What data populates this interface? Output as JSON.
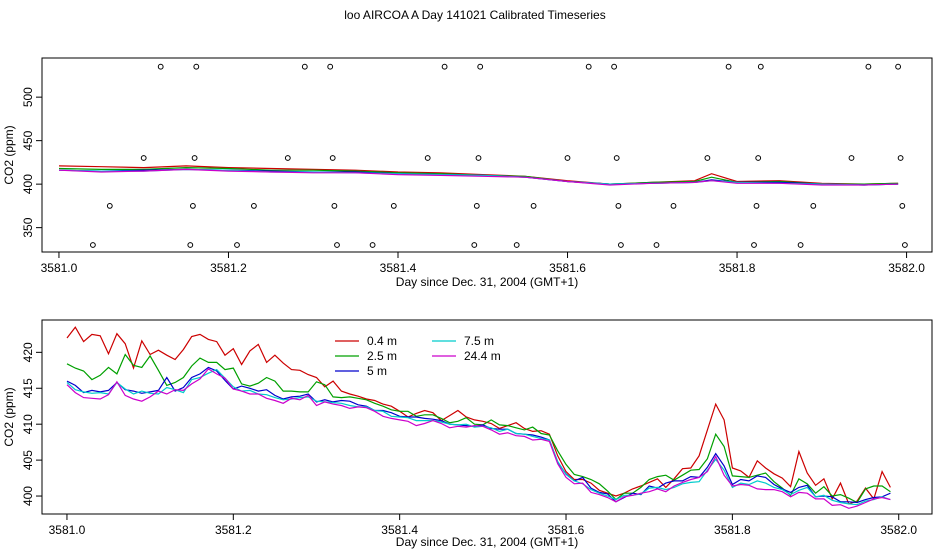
{
  "title": "loo AIRCOA A  Day 141021  Calibrated Timeseries",
  "colors": {
    "0.4 m": "#cc0000",
    "2.5 m": "#00a000",
    "5 m": "#0000cc",
    "7.5 m": "#00cccc",
    "24.4 m": "#cc00cc"
  },
  "chart_data": [
    {
      "type": "line",
      "xlabel": "Day since Dec. 31, 2004 (GMT+1)",
      "ylabel": "CO2 (ppm)",
      "xlim": [
        3580.98,
        3582.03
      ],
      "ylim": [
        322,
        545
      ],
      "x_ticks": [
        "3581.0",
        "3581.2",
        "3581.4",
        "3581.6",
        "3581.8",
        "3582.0"
      ],
      "y_ticks": [
        "350",
        "400",
        "450",
        "500"
      ],
      "series": [
        {
          "name": "0.4 m",
          "x": [
            3581.0,
            3581.05,
            3581.1,
            3581.15,
            3581.2,
            3581.25,
            3581.3,
            3581.35,
            3581.4,
            3581.45,
            3581.5,
            3581.55,
            3581.6,
            3581.65,
            3581.7,
            3581.75,
            3581.77,
            3581.8,
            3581.85,
            3581.9,
            3581.95,
            3581.99
          ],
          "values": [
            421,
            420,
            419,
            421,
            419,
            418,
            417,
            416,
            414,
            413,
            411,
            409,
            404,
            400,
            402,
            404,
            412,
            403,
            404,
            401,
            400,
            401
          ]
        },
        {
          "name": "2.5 m",
          "x": [
            3581.0,
            3581.05,
            3581.1,
            3581.15,
            3581.2,
            3581.25,
            3581.3,
            3581.35,
            3581.4,
            3581.45,
            3581.5,
            3581.55,
            3581.6,
            3581.65,
            3581.7,
            3581.75,
            3581.77,
            3581.8,
            3581.85,
            3581.9,
            3581.95,
            3581.99
          ],
          "values": [
            418,
            417,
            417,
            419,
            418,
            416,
            416,
            415,
            413,
            412,
            410,
            409,
            403,
            400,
            402,
            403,
            408,
            402,
            403,
            400,
            400,
            401
          ]
        },
        {
          "name": "5 m",
          "x": [
            3581.0,
            3581.05,
            3581.1,
            3581.15,
            3581.2,
            3581.25,
            3581.3,
            3581.35,
            3581.4,
            3581.45,
            3581.5,
            3581.55,
            3581.6,
            3581.65,
            3581.7,
            3581.75,
            3581.77,
            3581.8,
            3581.85,
            3581.9,
            3581.95,
            3581.99
          ],
          "values": [
            416,
            415,
            416,
            417,
            416,
            415,
            414,
            414,
            412,
            411,
            410,
            408,
            403,
            400,
            401,
            402,
            405,
            402,
            402,
            400,
            399,
            400
          ]
        },
        {
          "name": "7.5 m",
          "x": [
            3581.0,
            3581.05,
            3581.1,
            3581.15,
            3581.2,
            3581.25,
            3581.3,
            3581.35,
            3581.4,
            3581.45,
            3581.5,
            3581.55,
            3581.6,
            3581.65,
            3581.7,
            3581.75,
            3581.77,
            3581.8,
            3581.85,
            3581.9,
            3581.95,
            3581.99
          ],
          "values": [
            416,
            415,
            415,
            417,
            416,
            414,
            414,
            413,
            412,
            411,
            410,
            408,
            403,
            400,
            401,
            402,
            404,
            402,
            401,
            400,
            399,
            400
          ]
        },
        {
          "name": "24.4 m",
          "x": [
            3581.0,
            3581.05,
            3581.1,
            3581.15,
            3581.2,
            3581.25,
            3581.3,
            3581.35,
            3581.4,
            3581.45,
            3581.5,
            3581.55,
            3581.6,
            3581.65,
            3581.7,
            3581.75,
            3581.77,
            3581.8,
            3581.85,
            3581.9,
            3581.95,
            3581.99
          ],
          "values": [
            416,
            414,
            415,
            417,
            415,
            414,
            413,
            413,
            411,
            410,
            409,
            408,
            403,
            399,
            401,
            402,
            404,
            401,
            401,
            399,
            399,
            400
          ]
        }
      ],
      "points": {
        "x": [
          3581.04,
          3581.06,
          3581.1,
          3581.12,
          3581.155,
          3581.158,
          3581.16,
          3581.162,
          3581.21,
          3581.23,
          3581.27,
          3581.29,
          3581.32,
          3581.323,
          3581.325,
          3581.328,
          3581.37,
          3581.395,
          3581.435,
          3581.455,
          3581.49,
          3581.493,
          3581.495,
          3581.497,
          3581.54,
          3581.56,
          3581.6,
          3581.625,
          3581.655,
          3581.658,
          3581.66,
          3581.663,
          3581.705,
          3581.725,
          3581.765,
          3581.79,
          3581.82,
          3581.823,
          3581.825,
          3581.828,
          3581.875,
          3581.89,
          3581.935,
          3581.955,
          3581.99,
          3581.993,
          3581.995,
          3581.998
        ],
        "values": [
          330,
          375,
          430,
          535,
          330,
          375,
          430,
          535,
          330,
          375,
          430,
          535,
          535,
          430,
          375,
          330,
          330,
          375,
          430,
          535,
          330,
          375,
          430,
          535,
          330,
          375,
          430,
          535,
          535,
          430,
          375,
          330,
          330,
          375,
          430,
          535,
          330,
          375,
          430,
          535,
          330,
          375,
          430,
          535,
          535,
          430,
          375,
          330
        ]
      }
    },
    {
      "type": "line",
      "xlabel": "Day since Dec. 31, 2004 (GMT+1)",
      "ylabel": "CO2 (ppm)",
      "xlim": [
        3580.97,
        3582.04
      ],
      "ylim": [
        397.5,
        424.5
      ],
      "x_ticks": [
        "3581.0",
        "3581.2",
        "3581.4",
        "3581.6",
        "3581.8",
        "3582.0"
      ],
      "y_ticks": [
        "400",
        "405",
        "410",
        "415",
        "420"
      ],
      "legend": {
        "location": "top-left",
        "entries": [
          "0.4 m",
          "2.5 m",
          "5 m",
          "7.5 m",
          "24.4 m"
        ]
      },
      "x": [
        3581.0,
        3581.01,
        3581.02,
        3581.03,
        3581.04,
        3581.05,
        3581.06,
        3581.07,
        3581.08,
        3581.09,
        3581.1,
        3581.11,
        3581.12,
        3581.13,
        3581.14,
        3581.15,
        3581.16,
        3581.17,
        3581.18,
        3581.19,
        3581.2,
        3581.21,
        3581.22,
        3581.23,
        3581.24,
        3581.25,
        3581.26,
        3581.27,
        3581.28,
        3581.29,
        3581.3,
        3581.31,
        3581.32,
        3581.33,
        3581.34,
        3581.35,
        3581.36,
        3581.37,
        3581.38,
        3581.39,
        3581.4,
        3581.41,
        3581.42,
        3581.43,
        3581.44,
        3581.45,
        3581.46,
        3581.47,
        3581.48,
        3581.49,
        3581.5,
        3581.51,
        3581.52,
        3581.53,
        3581.54,
        3581.55,
        3581.56,
        3581.57,
        3581.58,
        3581.59,
        3581.6,
        3581.61,
        3581.62,
        3581.63,
        3581.64,
        3581.65,
        3581.66,
        3581.67,
        3581.68,
        3581.69,
        3581.7,
        3581.71,
        3581.72,
        3581.73,
        3581.74,
        3581.75,
        3581.76,
        3581.77,
        3581.78,
        3581.79,
        3581.8,
        3581.81,
        3581.82,
        3581.83,
        3581.84,
        3581.85,
        3581.86,
        3581.87,
        3581.88,
        3581.89,
        3581.9,
        3581.91,
        3581.92,
        3581.93,
        3581.94,
        3581.95,
        3581.96,
        3581.97,
        3581.98,
        3581.99
      ],
      "series": [
        {
          "name": "0.4 m",
          "values": [
            422.0,
            423.5,
            421.5,
            422.5,
            422.3,
            419.8,
            422.6,
            421.2,
            417.8,
            421.6,
            419.7,
            420.3,
            419.6,
            419.0,
            420.4,
            422.2,
            422.5,
            421.8,
            421.5,
            419.6,
            420.5,
            418.3,
            420.2,
            421.1,
            418.6,
            419.6,
            418.5,
            417.6,
            417.5,
            416.9,
            416.5,
            415.2,
            416.0,
            414.6,
            414.2,
            413.9,
            413.5,
            413.3,
            412.8,
            412.5,
            411.8,
            411.0,
            411.5,
            411.9,
            411.6,
            410.5,
            411.2,
            411.9,
            411.0,
            410.6,
            410.4,
            410.1,
            409.4,
            409.8,
            410.2,
            409.4,
            409.0,
            409.1,
            408.6,
            405.6,
            403.4,
            402.3,
            402.3,
            401.8,
            400.8,
            400.4,
            400.0,
            400.4,
            401.0,
            401.4,
            401.9,
            402.4,
            401.2,
            402.4,
            403.8,
            403.9,
            405.6,
            409.2,
            412.8,
            410.6,
            403.9,
            403.5,
            402.6,
            404.9,
            403.9,
            403.1,
            402.5,
            401.3,
            406.2,
            403.2,
            401.5,
            402.4,
            399.6,
            401.8,
            398.9,
            399.3,
            401.1,
            399.6,
            403.4,
            401.2
          ]
        },
        {
          "name": "2.5 m",
          "values": [
            418.4,
            417.8,
            417.4,
            416.2,
            416.8,
            417.9,
            417.0,
            419.7,
            418.2,
            417.9,
            419.5,
            417.5,
            415.4,
            415.8,
            416.5,
            418.1,
            419.2,
            418.6,
            418.6,
            417.6,
            417.8,
            415.6,
            415.3,
            415.7,
            416.5,
            416.0,
            414.6,
            414.6,
            414.5,
            414.5,
            415.9,
            415.5,
            413.8,
            413.7,
            413.8,
            413.6,
            413.4,
            412.9,
            412.5,
            412.0,
            411.8,
            411.8,
            411.1,
            411.3,
            411.3,
            410.8,
            410.2,
            410.4,
            410.9,
            410.0,
            409.9,
            410.6,
            409.9,
            409.8,
            409.5,
            409.2,
            409.6,
            408.7,
            408.5,
            406.3,
            404.4,
            403.0,
            402.7,
            402.3,
            401.7,
            400.7,
            399.5,
            400.4,
            400.4,
            401.2,
            402.3,
            402.7,
            402.9,
            402.2,
            402.9,
            403.6,
            403.7,
            405.2,
            408.6,
            406.9,
            402.8,
            402.7,
            402.6,
            402.9,
            403.2,
            402.0,
            401.1,
            400.1,
            402.4,
            401.7,
            400.4,
            401.3,
            400.0,
            400.2,
            399.7,
            399.1,
            401.0,
            401.4,
            401.4,
            400.6
          ]
        },
        {
          "name": "5 m",
          "values": [
            416.0,
            415.4,
            414.4,
            414.7,
            414.5,
            414.7,
            415.8,
            414.8,
            414.6,
            414.3,
            414.5,
            414.7,
            416.5,
            414.6,
            415.1,
            416.5,
            417.0,
            417.9,
            417.4,
            416.1,
            414.9,
            415.3,
            415.0,
            414.6,
            414.8,
            414.0,
            413.5,
            413.8,
            413.9,
            414.2,
            413.1,
            413.4,
            413.1,
            413.3,
            413.2,
            412.7,
            412.5,
            411.9,
            411.9,
            411.6,
            411.1,
            411.0,
            411.0,
            410.8,
            410.7,
            410.5,
            410.0,
            409.9,
            409.8,
            409.7,
            409.9,
            409.4,
            409.3,
            409.3,
            408.7,
            408.6,
            408.5,
            408.2,
            407.8,
            404.7,
            403.1,
            402.1,
            402.6,
            401.1,
            400.5,
            400.3,
            399.2,
            399.8,
            400.4,
            400.2,
            401.4,
            401.1,
            401.8,
            402.1,
            402.1,
            402.7,
            402.6,
            404.0,
            405.9,
            404.2,
            401.6,
            402.3,
            402.1,
            402.8,
            402.6,
            401.6,
            401.0,
            400.5,
            401.2,
            401.5,
            399.9,
            400.0,
            399.9,
            399.2,
            399.2,
            399.1,
            399.5,
            399.8,
            399.9,
            400.4
          ]
        },
        {
          "name": "7.5 m",
          "values": [
            415.8,
            414.8,
            414.5,
            414.3,
            414.4,
            414.2,
            415.8,
            414.9,
            414.2,
            414.6,
            414.3,
            414.2,
            415.1,
            414.8,
            414.4,
            416.2,
            416.5,
            417.1,
            417.6,
            416.4,
            415.2,
            414.6,
            414.7,
            414.2,
            414.1,
            413.7,
            413.4,
            413.5,
            413.7,
            413.8,
            413.2,
            413.1,
            413.0,
            412.9,
            412.6,
            412.4,
            412.4,
            411.9,
            411.8,
            411.1,
            411.0,
            410.9,
            410.5,
            410.5,
            410.5,
            410.3,
            410.0,
            409.9,
            410.0,
            409.6,
            409.7,
            409.5,
            409.0,
            409.3,
            408.7,
            408.6,
            408.3,
            408.0,
            407.8,
            404.8,
            403.0,
            402.1,
            401.7,
            400.9,
            400.4,
            400.0,
            399.5,
            400.1,
            400.1,
            400.3,
            401.1,
            401.2,
            400.9,
            401.2,
            401.7,
            401.9,
            402.0,
            403.6,
            405.1,
            403.6,
            401.2,
            401.8,
            401.6,
            402.1,
            401.8,
            401.2,
            400.9,
            400.2,
            400.8,
            401.2,
            399.9,
            400.1,
            399.4,
            399.1,
            398.9,
            398.8,
            399.3,
            399.5,
            399.9,
            399.5
          ]
        },
        {
          "name": "24.4 m",
          "values": [
            415.5,
            414.4,
            413.7,
            413.6,
            413.5,
            414.1,
            415.9,
            414.0,
            413.5,
            413.2,
            413.8,
            414.6,
            414.2,
            414.8,
            414.7,
            415.6,
            416.3,
            417.7,
            417.0,
            416.4,
            414.9,
            414.6,
            414.2,
            414.2,
            413.6,
            413.3,
            412.9,
            413.6,
            413.4,
            414.0,
            412.6,
            413.1,
            412.8,
            412.6,
            412.2,
            412.4,
            412.3,
            411.8,
            411.1,
            410.8,
            410.6,
            410.4,
            409.8,
            410.1,
            410.5,
            410.1,
            409.5,
            409.7,
            409.6,
            409.8,
            409.7,
            409.2,
            408.6,
            408.8,
            408.4,
            408.3,
            407.8,
            407.9,
            407.6,
            404.5,
            402.6,
            401.7,
            401.8,
            400.5,
            400.2,
            399.8,
            399.2,
            399.9,
            400.1,
            400.4,
            400.6,
            401.0,
            400.6,
            401.4,
            401.9,
            402.3,
            402.6,
            403.4,
            405.5,
            402.9,
            401.4,
            401.6,
            401.5,
            401.0,
            400.9,
            400.9,
            400.6,
            399.9,
            400.5,
            400.4,
            399.6,
            399.6,
            398.7,
            398.8,
            398.3,
            398.6,
            399.1,
            399.6,
            399.8,
            399.5
          ]
        }
      ]
    }
  ]
}
